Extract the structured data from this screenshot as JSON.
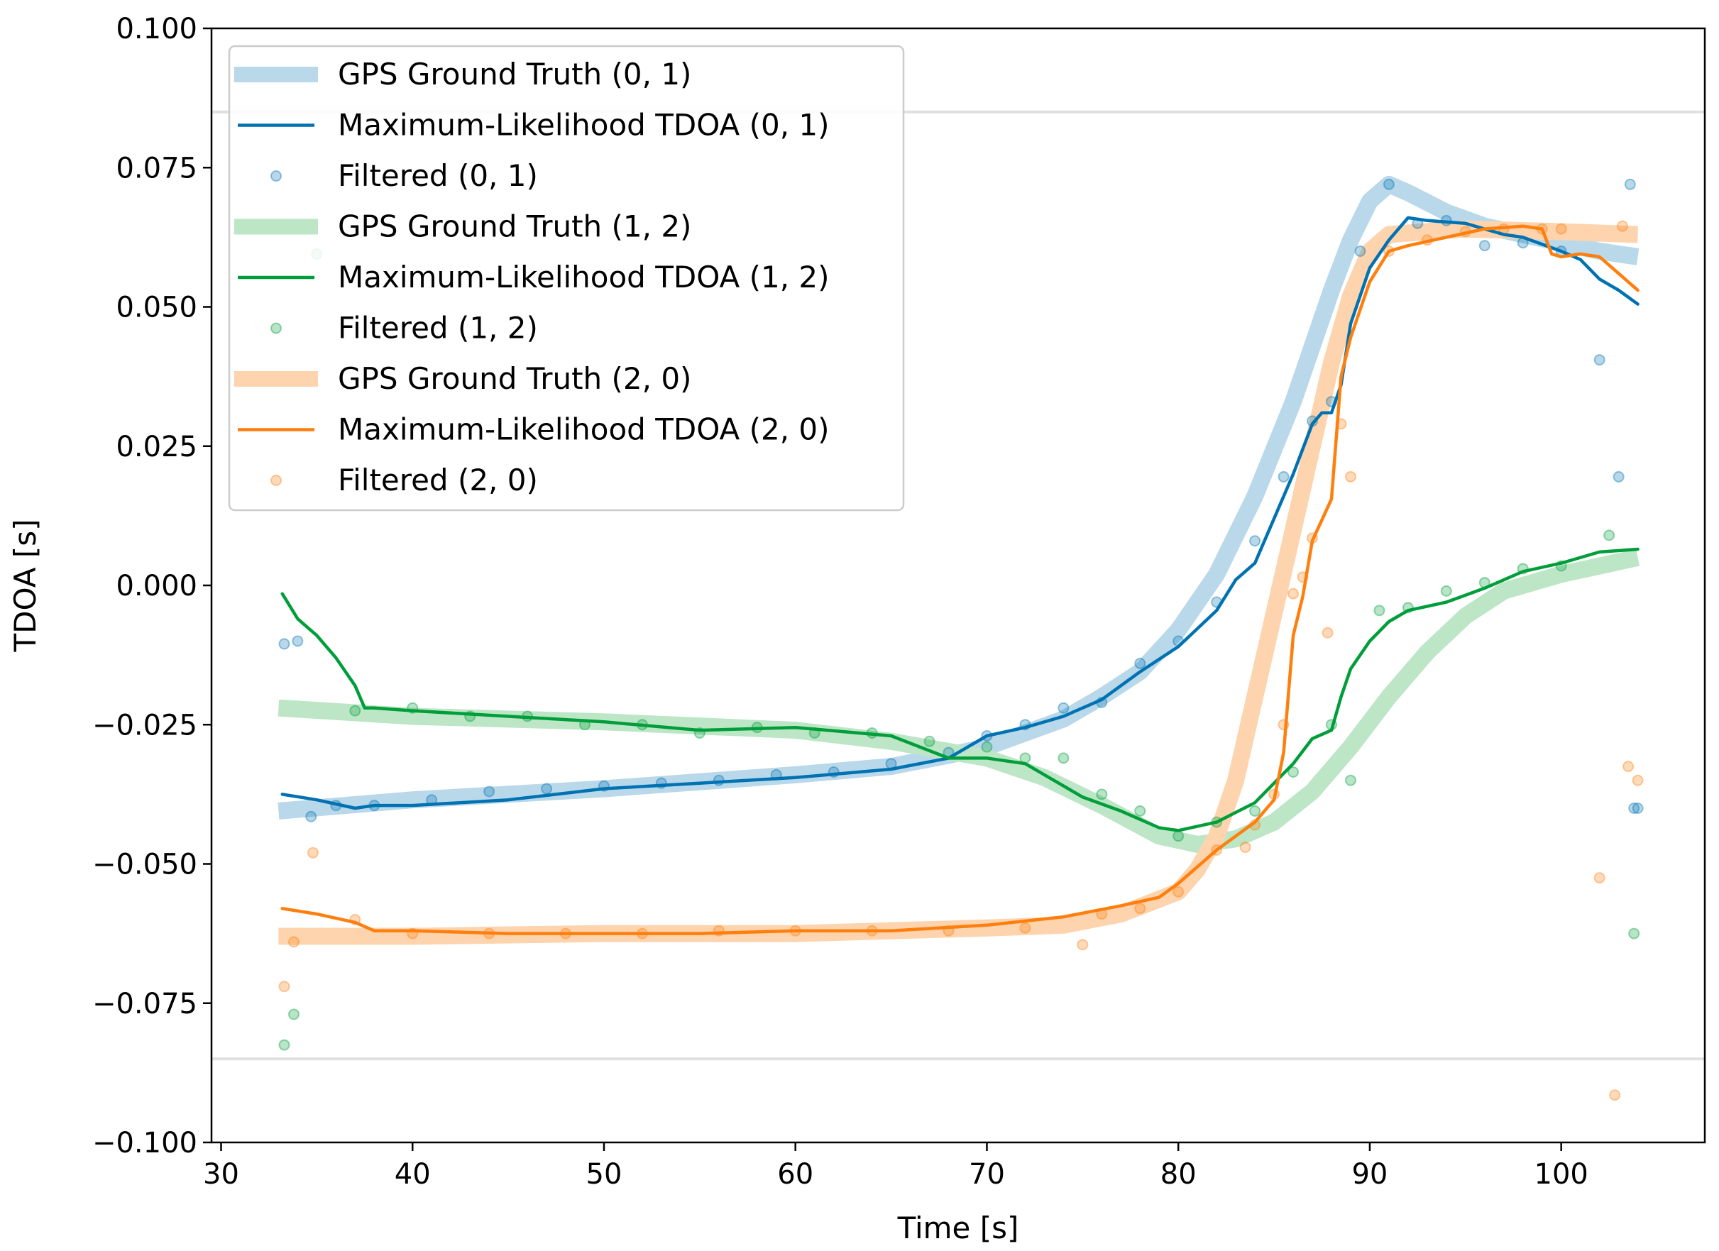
{
  "chart_data": {
    "type": "line",
    "title": "",
    "xlabel": "Time [s]",
    "ylabel": "TDOA [s]",
    "xlim": [
      29.5,
      107.5
    ],
    "ylim": [
      -0.1,
      0.1
    ],
    "xticks": [
      30,
      40,
      50,
      60,
      70,
      80,
      90,
      100
    ],
    "xtick_labels": [
      "30",
      "40",
      "50",
      "60",
      "70",
      "80",
      "90",
      "100"
    ],
    "yticks": [
      0.1,
      0.075,
      0.05,
      0.025,
      0.0,
      -0.025,
      -0.05,
      -0.075,
      -0.1
    ],
    "ytick_labels": [
      "0.100",
      "0.075",
      "0.050",
      "0.025",
      "0.000",
      "−0.025",
      "−0.050",
      "−0.075",
      "−0.100"
    ],
    "grid": false,
    "legend_position": "top-left",
    "reference_lines": [
      {
        "y": 0.085,
        "color": "#e0e0e0"
      },
      {
        "y": -0.085,
        "color": "#e0e0e0"
      }
    ],
    "series": [
      {
        "name": "GPS Ground Truth (0, 1)",
        "kind": "ground_truth",
        "color": "#b9d8ea",
        "x": [
          33,
          40,
          50,
          60,
          65,
          68,
          70,
          72,
          74,
          76,
          78,
          80,
          82,
          84,
          86,
          88,
          89,
          90,
          91,
          92,
          94,
          96,
          98,
          100,
          102,
          104
        ],
        "y": [
          -0.0405,
          -0.0385,
          -0.0365,
          -0.034,
          -0.0325,
          -0.0305,
          -0.029,
          -0.0265,
          -0.024,
          -0.02,
          -0.0155,
          -0.008,
          0.002,
          0.016,
          0.033,
          0.053,
          0.062,
          0.069,
          0.072,
          0.0705,
          0.067,
          0.0645,
          0.063,
          0.0615,
          0.06,
          0.059
        ]
      },
      {
        "name": "Maximum-Likelihood TDOA (0, 1)",
        "kind": "estimate",
        "color": "#0072b2",
        "x": [
          33.2,
          35,
          37,
          38,
          40,
          45,
          50,
          55,
          60,
          65,
          68,
          70,
          72,
          74,
          76,
          78,
          80,
          82,
          83,
          84,
          85,
          86,
          87,
          87.5,
          88,
          88.5,
          89,
          90,
          91,
          92,
          93,
          95,
          97,
          98,
          100,
          101,
          102,
          103,
          104
        ],
        "y": [
          -0.0375,
          -0.0385,
          -0.04,
          -0.0395,
          -0.0395,
          -0.0385,
          -0.0365,
          -0.0355,
          -0.0345,
          -0.033,
          -0.031,
          -0.027,
          -0.0255,
          -0.0235,
          -0.0205,
          -0.0155,
          -0.011,
          -0.0045,
          0.001,
          0.004,
          0.012,
          0.02,
          0.029,
          0.031,
          0.031,
          0.036,
          0.047,
          0.057,
          0.062,
          0.066,
          0.0655,
          0.065,
          0.063,
          0.0625,
          0.06,
          0.0585,
          0.055,
          0.053,
          0.0505
        ]
      },
      {
        "name": "Filtered (0, 1)",
        "kind": "filtered",
        "color": "#0072b2",
        "x": [
          33.3,
          34,
          34.7,
          36,
          38,
          41,
          44,
          47,
          50,
          53,
          56,
          59,
          62,
          65,
          68,
          70,
          72,
          74,
          76,
          78,
          80,
          82,
          84,
          85.5,
          87,
          88,
          89.5,
          91,
          92.5,
          94,
          96,
          98,
          100,
          102,
          103,
          103.6,
          103.8,
          104
        ],
        "y": [
          -0.0105,
          -0.01,
          -0.0415,
          -0.0395,
          -0.0395,
          -0.0385,
          -0.037,
          -0.0365,
          -0.036,
          -0.0355,
          -0.035,
          -0.034,
          -0.0335,
          -0.032,
          -0.03,
          -0.027,
          -0.025,
          -0.022,
          -0.021,
          -0.014,
          -0.01,
          -0.003,
          0.008,
          0.0195,
          0.0295,
          0.033,
          0.06,
          0.072,
          0.065,
          0.0655,
          0.061,
          0.0615,
          0.06,
          0.0405,
          0.0195,
          0.072,
          -0.04,
          -0.04
        ]
      },
      {
        "name": "GPS Ground Truth (1, 2)",
        "kind": "ground_truth",
        "color": "#bde6c6",
        "x": [
          33,
          40,
          50,
          60,
          65,
          70,
          73,
          76,
          79,
          81,
          83,
          85,
          87,
          89,
          91,
          93,
          95,
          97,
          100,
          104
        ],
        "y": [
          -0.022,
          -0.0235,
          -0.0245,
          -0.026,
          -0.028,
          -0.031,
          -0.0345,
          -0.0395,
          -0.045,
          -0.0465,
          -0.0455,
          -0.0425,
          -0.037,
          -0.029,
          -0.02,
          -0.012,
          -0.0055,
          -0.001,
          0.002,
          0.005
        ]
      },
      {
        "name": "Maximum-Likelihood TDOA (1, 2)",
        "kind": "estimate",
        "color": "#009e3a",
        "x": [
          33.2,
          34,
          35,
          36,
          37,
          37.5,
          38,
          40,
          45,
          50,
          55,
          60,
          65,
          68,
          70,
          72,
          74,
          75,
          77,
          79,
          80,
          82,
          84,
          86,
          87,
          88,
          88.5,
          89,
          90,
          91,
          92,
          94,
          96,
          98,
          100,
          102,
          104
        ],
        "y": [
          -0.0015,
          -0.006,
          -0.009,
          -0.013,
          -0.018,
          -0.022,
          -0.022,
          -0.0225,
          -0.0235,
          -0.0245,
          -0.026,
          -0.0255,
          -0.027,
          -0.031,
          -0.031,
          -0.032,
          -0.036,
          -0.038,
          -0.0405,
          -0.0435,
          -0.044,
          -0.0425,
          -0.039,
          -0.032,
          -0.0275,
          -0.026,
          -0.02,
          -0.015,
          -0.01,
          -0.0065,
          -0.0045,
          -0.003,
          -0.0005,
          0.0025,
          0.004,
          0.006,
          0.0065
        ]
      },
      {
        "name": "Filtered (1, 2)",
        "kind": "filtered",
        "color": "#009e3a",
        "x": [
          33.3,
          33.8,
          35,
          37,
          40,
          43,
          46,
          49,
          52,
          55,
          58,
          61,
          64,
          67,
          70,
          72,
          74,
          76,
          78,
          80,
          82,
          84,
          86,
          88,
          89,
          90.5,
          92,
          94,
          96,
          98,
          100,
          102.5,
          103.8
        ],
        "y": [
          -0.0825,
          -0.077,
          0.0595,
          -0.0225,
          -0.022,
          -0.0235,
          -0.0235,
          -0.025,
          -0.025,
          -0.0265,
          -0.0255,
          -0.0265,
          -0.0265,
          -0.028,
          -0.029,
          -0.031,
          -0.031,
          -0.0375,
          -0.0405,
          -0.045,
          -0.0425,
          -0.0405,
          -0.0335,
          -0.025,
          -0.035,
          -0.0045,
          -0.004,
          -0.001,
          0.0005,
          0.003,
          0.0035,
          0.009,
          -0.0625
        ]
      },
      {
        "name": "GPS Ground Truth (2, 0)",
        "kind": "ground_truth",
        "color": "#fdd4ae",
        "x": [
          33,
          40,
          50,
          60,
          70,
          74,
          77,
          80,
          81,
          82,
          83,
          84,
          85,
          86,
          87,
          88,
          89,
          90,
          91,
          93,
          95,
          100,
          104
        ],
        "y": [
          -0.063,
          -0.063,
          -0.0625,
          -0.0625,
          -0.0615,
          -0.061,
          -0.059,
          -0.055,
          -0.051,
          -0.045,
          -0.035,
          -0.02,
          -0.005,
          0.01,
          0.025,
          0.04,
          0.052,
          0.06,
          0.063,
          0.0635,
          0.064,
          0.0635,
          0.063
        ]
      },
      {
        "name": "Maximum-Likelihood TDOA (2, 0)",
        "kind": "estimate",
        "color": "#ff7f0e",
        "x": [
          33.2,
          35,
          37,
          38,
          40,
          45,
          50,
          55,
          60,
          65,
          70,
          74,
          77,
          79,
          80,
          81,
          82,
          83,
          84,
          85,
          85.5,
          86,
          86.5,
          87,
          88,
          88.5,
          89,
          90,
          91,
          92,
          94,
          96,
          98,
          99,
          99.5,
          100,
          101,
          102,
          103,
          104
        ],
        "y": [
          -0.058,
          -0.059,
          -0.0605,
          -0.062,
          -0.062,
          -0.0625,
          -0.0625,
          -0.0625,
          -0.062,
          -0.062,
          -0.061,
          -0.0595,
          -0.0575,
          -0.056,
          -0.0535,
          -0.0505,
          -0.0475,
          -0.045,
          -0.0425,
          -0.0385,
          -0.03,
          -0.009,
          -0.002,
          0.008,
          0.0155,
          0.0375,
          0.0445,
          0.0545,
          0.06,
          0.061,
          0.0625,
          0.064,
          0.0645,
          0.064,
          0.0595,
          0.059,
          0.0595,
          0.059,
          0.056,
          0.053
        ]
      },
      {
        "name": "Filtered (2, 0)",
        "kind": "filtered",
        "color": "#ff7f0e",
        "x": [
          33.3,
          33.8,
          34.8,
          37,
          40,
          44,
          48,
          52,
          56,
          60,
          64,
          68,
          72,
          75,
          76,
          78,
          80,
          82,
          83.5,
          84,
          85,
          85.5,
          86,
          86.5,
          87,
          87.8,
          88.5,
          89,
          91,
          93,
          95,
          97,
          99,
          100,
          102,
          102.8,
          103.2,
          103.5,
          104
        ],
        "y": [
          -0.072,
          -0.064,
          -0.048,
          -0.06,
          -0.0625,
          -0.0625,
          -0.0625,
          -0.0625,
          -0.062,
          -0.062,
          -0.062,
          -0.062,
          -0.0615,
          -0.0645,
          -0.059,
          -0.058,
          -0.055,
          -0.0475,
          -0.047,
          -0.043,
          -0.0375,
          -0.025,
          -0.0015,
          0.0015,
          0.0085,
          -0.0085,
          0.029,
          0.0195,
          0.06,
          0.062,
          0.0635,
          0.064,
          0.064,
          0.064,
          -0.0525,
          -0.0915,
          0.0645,
          -0.0325,
          -0.035
        ]
      }
    ]
  }
}
